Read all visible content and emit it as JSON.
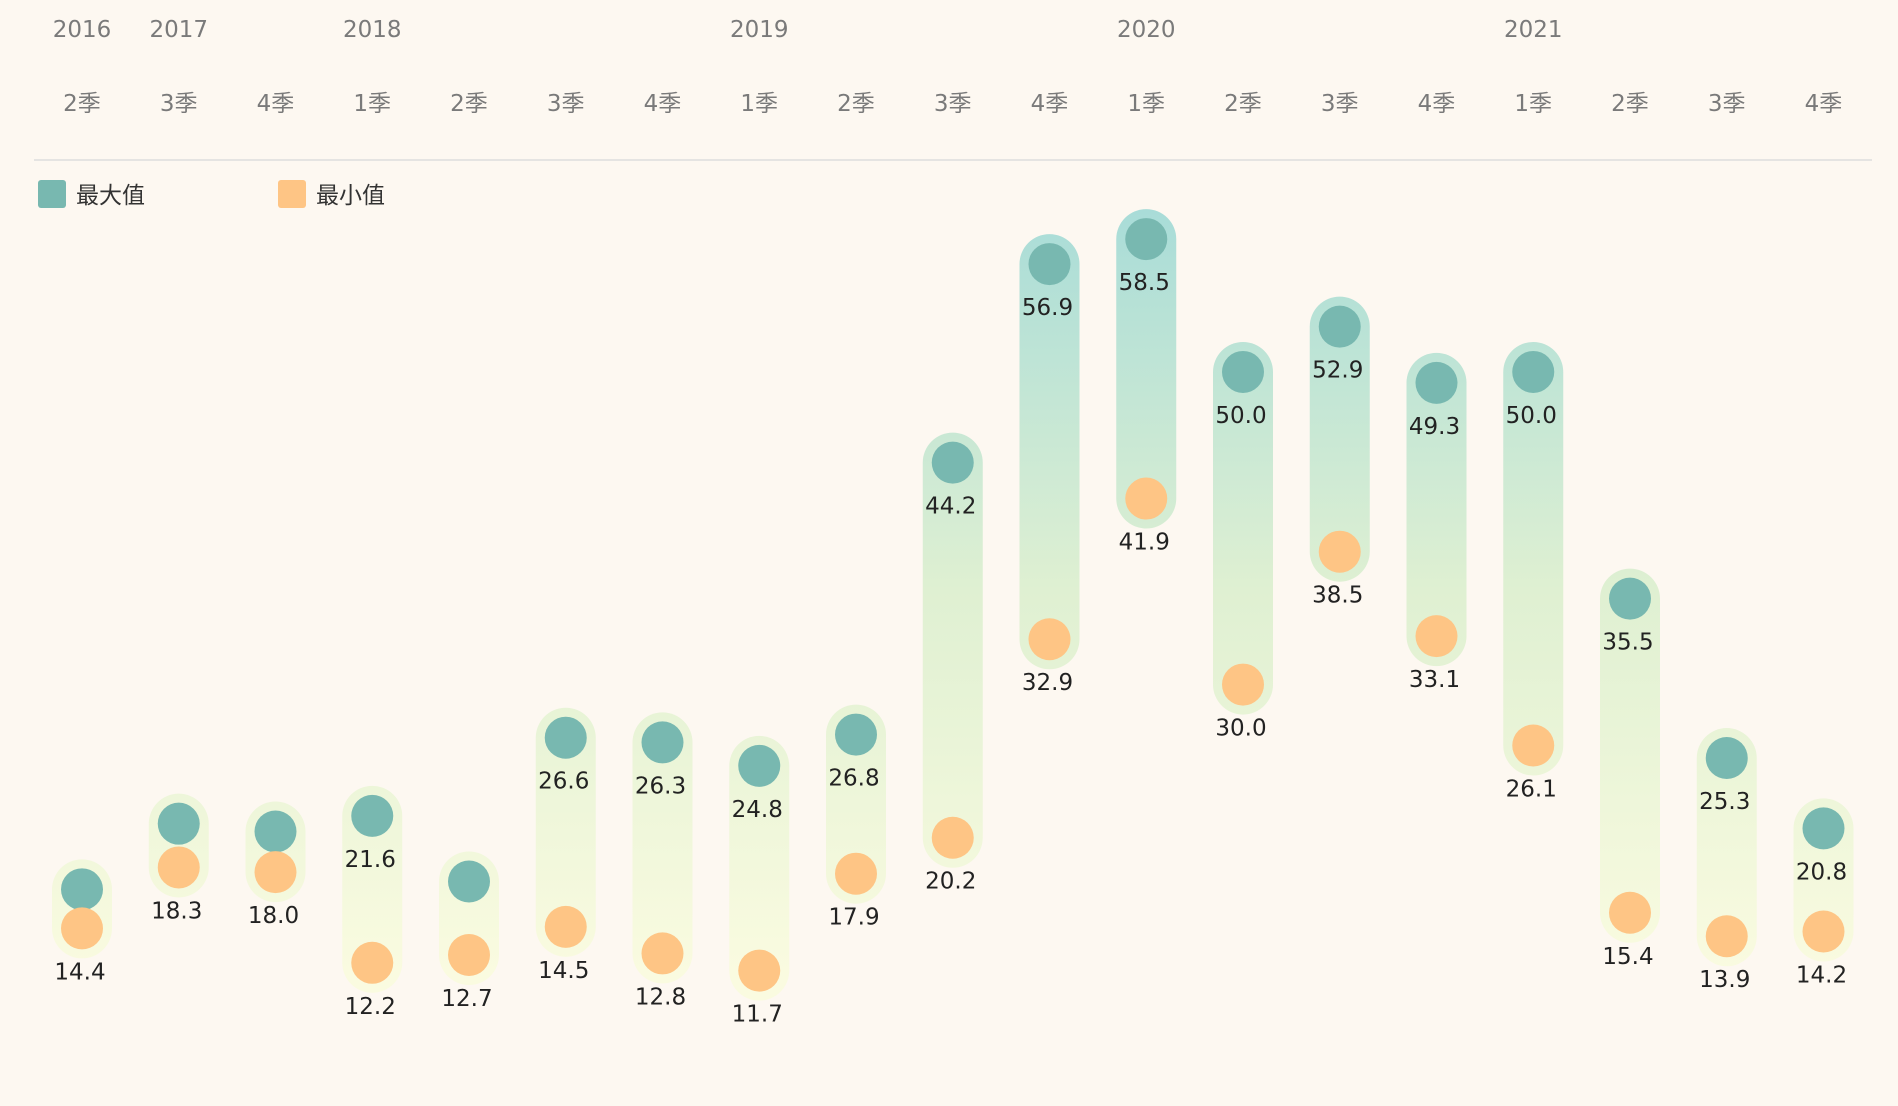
{
  "colors": {
    "background": "#fdf8f1",
    "max": "#78b8b0",
    "min": "#fec585",
    "bar_top": "#a8dcd8",
    "bar_bottom": "#f8f9d8",
    "axis_text": "#7a7a7a",
    "divider": "#dddddd"
  },
  "chart_data": {
    "type": "range-dot",
    "legend": [
      {
        "key": "max",
        "label": "最大值",
        "color": "#78b8b0"
      },
      {
        "key": "min",
        "label": "最小值",
        "color": "#fec585"
      }
    ],
    "years": [
      "2016",
      "2017",
      "2018",
      "2019",
      "2020",
      "2021"
    ],
    "quarters": [
      {
        "year": "2016",
        "label": "2季",
        "max": 16.9,
        "min": 14.4,
        "max_label": "",
        "min_label": "14.4"
      },
      {
        "year": "2017",
        "label": "3季",
        "max": 21.1,
        "min": 18.3,
        "max_label": "",
        "min_label": "18.3"
      },
      {
        "year": "2017",
        "label": "4季",
        "max": 20.6,
        "min": 18.0,
        "max_label": "",
        "min_label": "18.0"
      },
      {
        "year": "2018",
        "label": "1季",
        "max": 21.6,
        "min": 12.2,
        "max_label": "21.6",
        "min_label": "12.2"
      },
      {
        "year": "2018",
        "label": "2季",
        "max": 17.4,
        "min": 12.7,
        "max_label": "",
        "min_label": "12.7"
      },
      {
        "year": "2018",
        "label": "3季",
        "max": 26.6,
        "min": 14.5,
        "max_label": "26.6",
        "min_label": "14.5"
      },
      {
        "year": "2018",
        "label": "4季",
        "max": 26.3,
        "min": 12.8,
        "max_label": "26.3",
        "min_label": "12.8"
      },
      {
        "year": "2019",
        "label": "1季",
        "max": 24.8,
        "min": 11.7,
        "max_label": "24.8",
        "min_label": "11.7"
      },
      {
        "year": "2019",
        "label": "2季",
        "max": 26.8,
        "min": 17.9,
        "max_label": "26.8",
        "min_label": "17.9"
      },
      {
        "year": "2019",
        "label": "3季",
        "max": 44.2,
        "min": 20.2,
        "max_label": "44.2",
        "min_label": "20.2"
      },
      {
        "year": "2019",
        "label": "4季",
        "max": 56.9,
        "min": 32.9,
        "max_label": "56.9",
        "min_label": "32.9"
      },
      {
        "year": "2020",
        "label": "1季",
        "max": 58.5,
        "min": 41.9,
        "max_label": "58.5",
        "min_label": "41.9"
      },
      {
        "year": "2020",
        "label": "2季",
        "max": 50.0,
        "min": 30.0,
        "max_label": "50.0",
        "min_label": "30.0"
      },
      {
        "year": "2020",
        "label": "3季",
        "max": 52.9,
        "min": 38.5,
        "max_label": "52.9",
        "min_label": "38.5"
      },
      {
        "year": "2020",
        "label": "4季",
        "max": 49.3,
        "min": 33.1,
        "max_label": "49.3",
        "min_label": "33.1"
      },
      {
        "year": "2021",
        "label": "1季",
        "max": 50.0,
        "min": 26.1,
        "max_label": "50.0",
        "min_label": "26.1"
      },
      {
        "year": "2021",
        "label": "2季",
        "max": 35.5,
        "min": 15.4,
        "max_label": "35.5",
        "min_label": "15.4"
      },
      {
        "year": "2021",
        "label": "3季",
        "max": 25.3,
        "min": 13.9,
        "max_label": "25.3",
        "min_label": "13.9"
      },
      {
        "year": "2021",
        "label": "4季",
        "max": 20.8,
        "min": 14.2,
        "max_label": "20.8",
        "min_label": "14.2"
      }
    ],
    "ylim": [
      9.5,
      61
    ],
    "grid": false,
    "legend_position": "top-left"
  }
}
